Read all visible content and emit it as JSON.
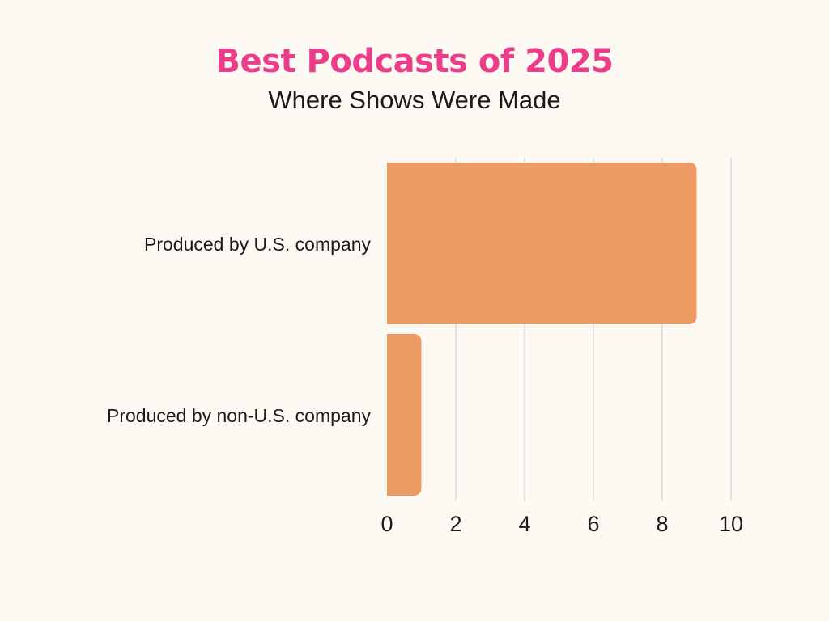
{
  "chart_data": {
    "type": "bar",
    "orientation": "horizontal",
    "title": "Best Podcasts of 2025",
    "subtitle": "Where Shows Were Made",
    "categories": [
      "Produced by U.S. company",
      "Produced by non-U.S. company"
    ],
    "values": [
      9,
      1
    ],
    "xlim": [
      0,
      10
    ],
    "xticks": [
      0,
      2,
      4,
      6,
      8,
      10
    ],
    "grid": true,
    "legend": "none",
    "bar_color": "#ec9a62",
    "title_color": "#ec3d8b",
    "grid_color": "#d4d4d4"
  }
}
